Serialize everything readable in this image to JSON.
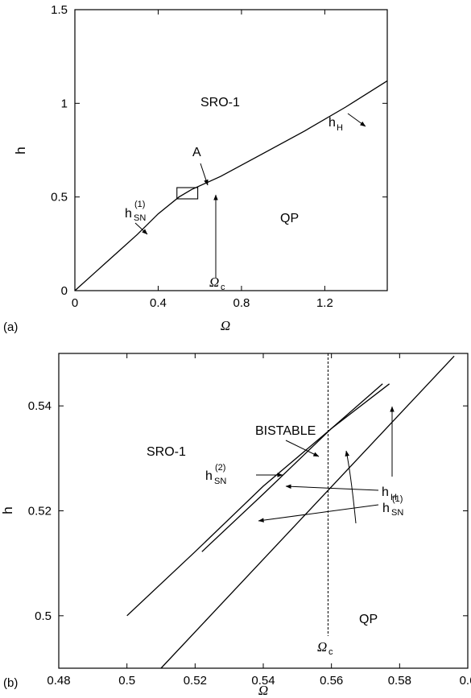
{
  "chart_data": [
    {
      "panel_label": "(a)",
      "type": "line",
      "xlabel": "Ω",
      "ylabel": "h",
      "xlim": [
        0,
        1.5
      ],
      "ylim": [
        0,
        1.5
      ],
      "xticks": [
        "0",
        "0.4",
        "0.8",
        "1.2"
      ],
      "yticks": [
        "0",
        "0.5",
        "1",
        "1.5"
      ],
      "series": [
        {
          "x": [
            0,
            0.1,
            0.2,
            0.3,
            0.4,
            0.5,
            0.56,
            0.7,
            0.9,
            1.1,
            1.3,
            1.5
          ],
          "y": [
            0,
            0.1,
            0.2,
            0.3,
            0.41,
            0.5,
            0.54,
            0.61,
            0.73,
            0.85,
            0.98,
            1.12
          ]
        }
      ],
      "box": {
        "x": [
          0.49,
          0.59
        ],
        "y": [
          0.49,
          0.55
        ]
      },
      "annotations": {
        "region_top": "SRO-1",
        "region_bottom": "QP",
        "box_label": "A",
        "hsn_main": "h",
        "hsn_sub": "SN",
        "hsn_sup": "(1)",
        "hh_main": "h",
        "hh_sub": "H",
        "omega_c_main": "Ω",
        "omega_c_sub": "c"
      }
    },
    {
      "panel_label": "(b)",
      "type": "line",
      "xlabel": "Ω",
      "ylabel": "h",
      "xlim": [
        0.48,
        0.6
      ],
      "ylim": [
        0.49,
        0.55
      ],
      "xticks": [
        "0.48",
        "0.5",
        "0.52",
        "0.54",
        "0.56",
        "0.58",
        "0.6"
      ],
      "yticks": [
        "0.5",
        "0.52",
        "0.54"
      ],
      "omega_c": 0.559,
      "series": [
        {
          "x": [
            0.51,
            0.596
          ],
          "y": [
            0.49,
            0.5495
          ]
        },
        {
          "x": [
            0.5,
            0.52,
            0.54,
            0.56,
            0.577
          ],
          "y": [
            0.5,
            0.5122,
            0.5247,
            0.5357,
            0.5442
          ]
        },
        {
          "x": [
            0.522,
            0.54,
            0.56,
            0.575
          ],
          "y": [
            0.5122,
            0.5232,
            0.5357,
            0.5442
          ]
        }
      ],
      "annotations": {
        "region_left": "SRO-1",
        "region_bottom": "QP",
        "bistable": "BISTABLE",
        "hsn2_main": "h",
        "hsn2_sub": "SN",
        "hsn2_sup": "(2)",
        "hh_main": "h",
        "hh_sub": "H",
        "hsn1_main": "h",
        "hsn1_sub": "SN",
        "hsn1_sup": "(1)",
        "omega_c_main": "Ω",
        "omega_c_sub": "c"
      }
    }
  ]
}
